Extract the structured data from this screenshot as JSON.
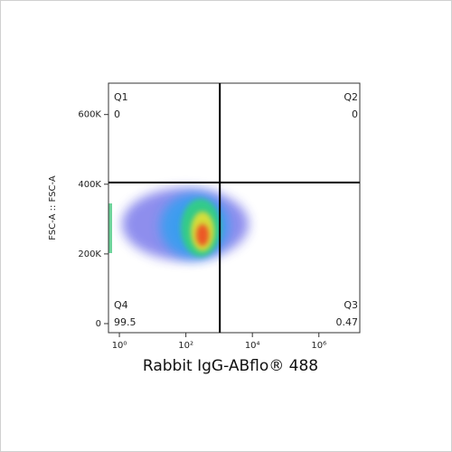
{
  "chart_data": {
    "type": "scatter",
    "x_label": "Rabbit IgG-ABflo® 488",
    "y_label": "FSC-A :: FSC-A",
    "x_scale": "log",
    "xlim": [
      0.47,
      17000000
    ],
    "ylim": [
      -26000,
      690000
    ],
    "xticks": [
      {
        "value": 1,
        "label": "10⁰"
      },
      {
        "value": 100,
        "label": "10²"
      },
      {
        "value": 10000,
        "label": "10⁴"
      },
      {
        "value": 1000000,
        "label": "10⁶"
      }
    ],
    "yticks": [
      {
        "value": 0,
        "label": "0"
      },
      {
        "value": 200000,
        "label": "200K"
      },
      {
        "value": 400000,
        "label": "400K"
      },
      {
        "value": 600000,
        "label": "600K"
      }
    ],
    "gate_x": 1050,
    "gate_y": 405000,
    "quadrants": [
      {
        "name": "Q1",
        "value": 0
      },
      {
        "name": "Q2",
        "value": 0
      },
      {
        "name": "Q3",
        "value": 0.47
      },
      {
        "name": "Q4",
        "value": 99.5
      }
    ]
  }
}
